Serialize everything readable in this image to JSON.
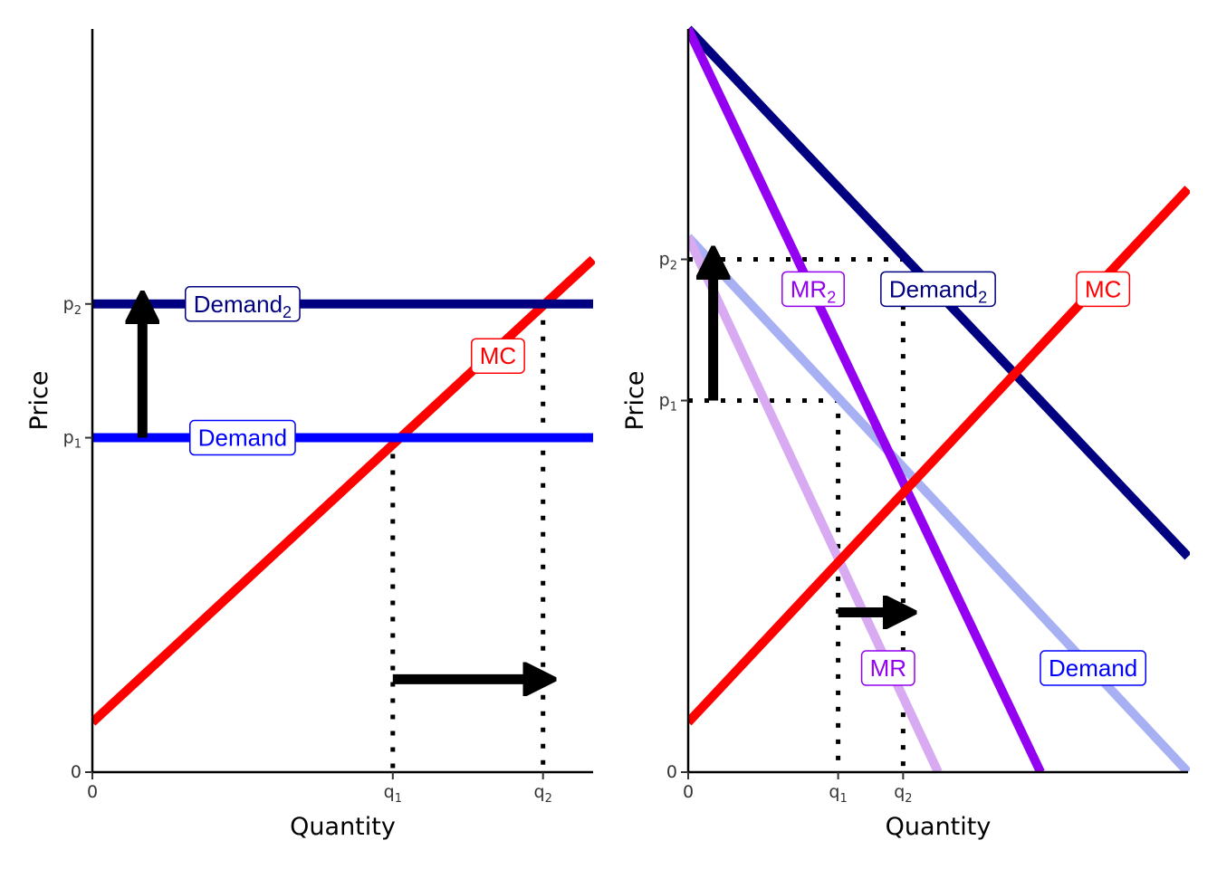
{
  "colors": {
    "mc": "#ff0000",
    "demand": "#0000ff",
    "demand2": "#000080",
    "mr": "#9400f0",
    "demand_faded": "#a8b0f4",
    "mr_faded": "#d8aaf2",
    "axis": "#000000",
    "arrow": "#000000"
  },
  "chart_data": [
    {
      "type": "line",
      "title": "",
      "xlabel": "Quantity",
      "ylabel": "Price",
      "xlim": [
        0,
        10
      ],
      "ylim": [
        0,
        10
      ],
      "x_ticks": [
        {
          "value": 0,
          "main": "0",
          "sub": ""
        },
        {
          "value": 6,
          "main": "q",
          "sub": "1"
        },
        {
          "value": 9,
          "main": "q",
          "sub": "2"
        }
      ],
      "y_ticks": [
        {
          "value": 0,
          "main": "0",
          "sub": ""
        },
        {
          "value": 4.5,
          "main": "p",
          "sub": "1"
        },
        {
          "value": 6.3,
          "main": "p",
          "sub": "2"
        }
      ],
      "series": [
        {
          "name": "MC",
          "label_main": "MC",
          "label_sub": "",
          "color": "mc",
          "points": [
            [
              0,
              0.67
            ],
            [
              10,
              6.9
            ]
          ],
          "label_at": [
            8.1,
            5.6
          ]
        },
        {
          "name": "Demand",
          "label_main": "Demand",
          "label_sub": "",
          "color": "demand",
          "points": [
            [
              0,
              4.5
            ],
            [
              10,
              4.5
            ]
          ],
          "label_at": [
            3.0,
            4.5
          ]
        },
        {
          "name": "Demand2",
          "label_main": "Demand",
          "label_sub": "2",
          "color": "demand2",
          "points": [
            [
              0,
              6.3
            ],
            [
              10,
              6.3
            ]
          ],
          "label_at": [
            3.0,
            6.3
          ]
        }
      ],
      "guides": [
        {
          "points": [
            [
              6,
              4.5
            ],
            [
              6,
              0
            ]
          ]
        },
        {
          "points": [
            [
              9,
              6.3
            ],
            [
              9,
              0
            ]
          ]
        }
      ],
      "arrows": [
        {
          "from": [
            1,
            4.5
          ],
          "to": [
            1,
            6.3
          ]
        },
        {
          "from": [
            6,
            1.25
          ],
          "to": [
            9,
            1.25
          ]
        }
      ]
    },
    {
      "type": "line",
      "title": "",
      "xlabel": "Quantity",
      "ylabel": "Price",
      "xlim": [
        0,
        10
      ],
      "ylim": [
        0,
        10
      ],
      "x_ticks": [
        {
          "value": 0,
          "main": "0",
          "sub": ""
        },
        {
          "value": 3,
          "main": "q",
          "sub": "1"
        },
        {
          "value": 4.3,
          "main": "q",
          "sub": "2"
        }
      ],
      "y_ticks": [
        {
          "value": 0,
          "main": "0",
          "sub": ""
        },
        {
          "value": 5,
          "main": "p",
          "sub": "1"
        },
        {
          "value": 6.9,
          "main": "p",
          "sub": "2"
        }
      ],
      "series": [
        {
          "name": "Demand",
          "label_main": "Demand",
          "label_sub": "",
          "color": "demand_faded",
          "label_color": "demand",
          "points": [
            [
              0,
              7.2
            ],
            [
              10,
              0
            ]
          ],
          "label_at": [
            8.1,
            1.4
          ]
        },
        {
          "name": "MR",
          "label_main": "MR",
          "label_sub": "",
          "color": "mr_faded",
          "label_color": "mr",
          "points": [
            [
              0,
              7.2
            ],
            [
              5,
              0
            ]
          ],
          "label_at": [
            4.0,
            1.4
          ]
        },
        {
          "name": "Demand2",
          "label_main": "Demand",
          "label_sub": "2",
          "color": "demand2",
          "points": [
            [
              0,
              10
            ],
            [
              10,
              2.9
            ]
          ],
          "label_at": [
            5.0,
            6.5
          ]
        },
        {
          "name": "MR2",
          "label_main": "MR",
          "label_sub": "2",
          "color": "mr",
          "points": [
            [
              0,
              10
            ],
            [
              7.05,
              0
            ]
          ],
          "label_at": [
            2.5,
            6.5
          ]
        },
        {
          "name": "MC",
          "label_main": "MC",
          "label_sub": "",
          "color": "mc",
          "points": [
            [
              0,
              0.67
            ],
            [
              10,
              7.85
            ]
          ],
          "label_at": [
            8.3,
            6.5
          ]
        }
      ],
      "guides": [
        {
          "points": [
            [
              0,
              5
            ],
            [
              3,
              5
            ],
            [
              3,
              0
            ]
          ]
        },
        {
          "points": [
            [
              0,
              6.9
            ],
            [
              4.3,
              6.9
            ],
            [
              4.3,
              0
            ]
          ]
        }
      ],
      "arrows": [
        {
          "from": [
            0.5,
            5
          ],
          "to": [
            0.5,
            6.9
          ]
        },
        {
          "from": [
            3,
            2.15
          ],
          "to": [
            4.3,
            2.15
          ]
        }
      ]
    }
  ]
}
